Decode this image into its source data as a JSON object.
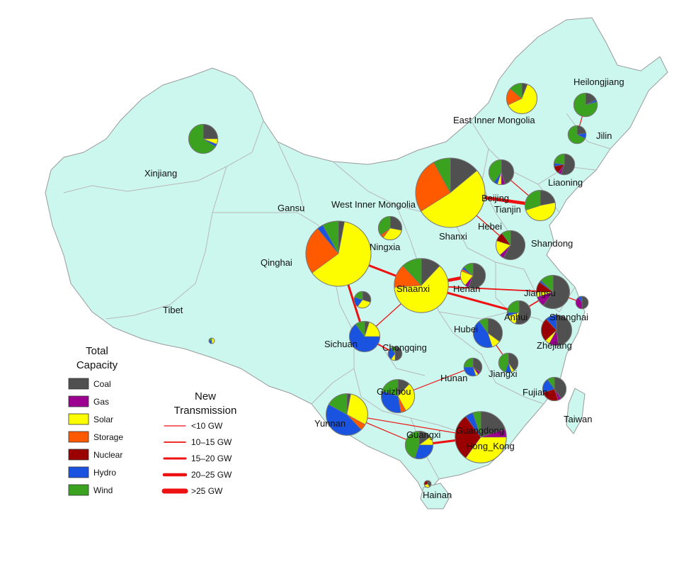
{
  "colors": {
    "Coal": "#505050",
    "Gas": "#9b008f",
    "Solar": "#fdfd00",
    "Storage": "#ff5a00",
    "Nuclear": "#9a0000",
    "Hydro": "#1a53e0",
    "Wind": "#3aa21e",
    "transmission": "#ee1111",
    "land": "#ccf7ee"
  },
  "legend": {
    "capacity_title_1": "Total",
    "capacity_title_2": "Capacity",
    "types": [
      "Coal",
      "Gas",
      "Solar",
      "Storage",
      "Nuclear",
      "Hydro",
      "Wind"
    ],
    "transmission_title_1": "New",
    "transmission_title_2": "Transmission",
    "transmission_levels": [
      "<10 GW",
      "10–15 GW",
      "15–20 GW",
      "20–25 GW",
      ">25 GW"
    ]
  },
  "labels": {
    "xinjiang": "Xinjiang",
    "tibet": "Tibet",
    "qinghai": "Qinghai",
    "gansu": "Gansu",
    "west_inner_mongolia": "West Inner Mongolia",
    "east_inner_mongolia": "East Inner Mongolia",
    "heilongjiang": "Heilongjiang",
    "jilin": "Jilin",
    "liaoning": "Liaoning",
    "beijing": "Beijing",
    "tianjin": "Tianjin",
    "hebei": "Hebei",
    "shanxi": "Shanxi",
    "shandong": "Shandong",
    "ningxia": "Ningxia",
    "shaanxi": "Shaanxi",
    "henan": "Henan",
    "jiangsu": "Jiangsu",
    "shanghai": "Shanghai",
    "anhui": "Anhui",
    "hubei": "Hubei",
    "zhejiang": "Zhejiang",
    "sichuan": "Sichuan",
    "chongqing": "Chongqing",
    "hunan": "Hunan",
    "jiangxi": "Jiangxi",
    "fujian": "Fujian",
    "guizhou": "Guizhou",
    "yunnan": "Yunnan",
    "guangxi": "Guangxi",
    "guangdong": "Guangdong",
    "hong_kong": "Hong_Kong",
    "taiwan": "Taiwan",
    "hainan": "Hainan"
  },
  "pies": [
    {
      "name": "Xinjiang",
      "size": 0.42,
      "shares": {
        "Coal": 0.25,
        "Solar": 0.06,
        "Hydro": 0.03,
        "Wind": 0.66
      }
    },
    {
      "name": "East Inner Mongolia",
      "size": 0.44,
      "shares": {
        "Coal": 0.06,
        "Solar": 0.62,
        "Storage": 0.18,
        "Wind": 0.14
      }
    },
    {
      "name": "Heilongjiang",
      "size": 0.34,
      "shares": {
        "Coal": 0.18,
        "Hydro": 0.03,
        "Wind": 0.79
      }
    },
    {
      "name": "Jilin",
      "size": 0.26,
      "shares": {
        "Coal": 0.22,
        "Hydro": 0.1,
        "Wind": 0.68
      }
    },
    {
      "name": "Liaoning",
      "size": 0.3,
      "shares": {
        "Coal": 0.55,
        "Gas": 0.05,
        "Nuclear": 0.12,
        "Hydro": 0.05,
        "Wind": 0.23
      }
    },
    {
      "name": "West Inner Mongolia",
      "size": 1.0,
      "shares": {
        "Coal": 0.14,
        "Solar": 0.52,
        "Storage": 0.26,
        "Wind": 0.08
      }
    },
    {
      "name": "Beijing",
      "size": 0.36,
      "shares": {
        "Coal": 0.45,
        "Gas": 0.05,
        "Solar": 0.05,
        "Hydro": 0.05,
        "Wind": 0.4
      }
    },
    {
      "name": "Hebei",
      "size": 0.44,
      "shares": {
        "Coal": 0.22,
        "Solar": 0.48,
        "Wind": 0.3
      }
    },
    {
      "name": "Ningxia",
      "size": 0.34,
      "shares": {
        "Coal": 0.28,
        "Solar": 0.32,
        "Storage": 0.05,
        "Wind": 0.35
      }
    },
    {
      "name": "Shandong",
      "size": 0.42,
      "shares": {
        "Coal": 0.58,
        "Gas": 0.05,
        "Solar": 0.17,
        "Nuclear": 0.1,
        "Wind": 0.1
      }
    },
    {
      "name": "Qinghai",
      "size": 0.94,
      "shares": {
        "Coal": 0.03,
        "Solar": 0.62,
        "Storage": 0.24,
        "Hydro": 0.03,
        "Wind": 0.08
      }
    },
    {
      "name": "Gansu",
      "size": 0.24,
      "shares": {
        "Coal": 0.3,
        "Solar": 0.3,
        "Hydro": 0.2,
        "Wind": 0.2
      }
    },
    {
      "name": "Shaanxi",
      "size": 0.78,
      "shares": {
        "Coal": 0.12,
        "Solar": 0.62,
        "Storage": 0.14,
        "Wind": 0.12
      }
    },
    {
      "name": "Henan",
      "size": 0.36,
      "shares": {
        "Coal": 0.56,
        "Gas": 0.05,
        "Solar": 0.2,
        "Storage": 0.03,
        "Hydro": 0.03,
        "Wind": 0.13
      }
    },
    {
      "name": "Jiangsu",
      "size": 0.48,
      "shares": {
        "Coal": 0.6,
        "Gas": 0.1,
        "Solar": 0.05,
        "Nuclear": 0.1,
        "Hydro": 0.02,
        "Wind": 0.13
      }
    },
    {
      "name": "Shanghai",
      "size": 0.18,
      "shares": {
        "Coal": 0.5,
        "Gas": 0.4,
        "Hydro": 0.1
      }
    },
    {
      "name": "Anhui",
      "size": 0.34,
      "shares": {
        "Coal": 0.55,
        "Solar": 0.15,
        "Hydro": 0.05,
        "Wind": 0.25
      }
    },
    {
      "name": "Zhejiang",
      "size": 0.44,
      "shares": {
        "Coal": 0.48,
        "Gas": 0.1,
        "Solar": 0.05,
        "Nuclear": 0.25,
        "Hydro": 0.12
      }
    },
    {
      "name": "Sichuan",
      "size": 0.44,
      "shares": {
        "Coal": 0.05,
        "Solar": 0.2,
        "Hydro": 0.65,
        "Wind": 0.1
      }
    },
    {
      "name": "Chongqing",
      "size": 0.2,
      "shares": {
        "Coal": 0.5,
        "Solar": 0.1,
        "Hydro": 0.3,
        "Wind": 0.1
      }
    },
    {
      "name": "Hubei",
      "size": 0.42,
      "shares": {
        "Coal": 0.35,
        "Solar": 0.1,
        "Hydro": 0.45,
        "Wind": 0.1
      }
    },
    {
      "name": "Hunan",
      "size": 0.26,
      "shares": {
        "Coal": 0.35,
        "Gas": 0.05,
        "Solar": 0.05,
        "Hydro": 0.3,
        "Wind": 0.25
      }
    },
    {
      "name": "Jiangxi",
      "size": 0.28,
      "shares": {
        "Coal": 0.4,
        "Solar": 0.05,
        "Hydro": 0.1,
        "Wind": 0.45
      }
    },
    {
      "name": "Fujian",
      "size": 0.34,
      "shares": {
        "Coal": 0.4,
        "Gas": 0.05,
        "Nuclear": 0.25,
        "Hydro": 0.2,
        "Wind": 0.1
      }
    },
    {
      "name": "Guizhou",
      "size": 0.48,
      "shares": {
        "Coal": 0.12,
        "Solar": 0.3,
        "Storage": 0.05,
        "Hydro": 0.33,
        "Wind": 0.2
      }
    },
    {
      "name": "Yunnan",
      "size": 0.6,
      "shares": {
        "Coal": 0.03,
        "Solar": 0.3,
        "Storage": 0.05,
        "Hydro": 0.45,
        "Wind": 0.17
      }
    },
    {
      "name": "Guangxi",
      "size": 0.4,
      "shares": {
        "Coal": 0.15,
        "Solar": 0.1,
        "Hydro": 0.3,
        "Wind": 0.45
      }
    },
    {
      "name": "Guangdong",
      "size": 0.74,
      "shares": {
        "Coal": 0.2,
        "Gas": 0.05,
        "Solar": 0.35,
        "Nuclear": 0.3,
        "Hydro": 0.05,
        "Wind": 0.05
      }
    },
    {
      "name": "Tibet",
      "size": 0.08,
      "shares": {
        "Solar": 0.5,
        "Hydro": 0.3,
        "Wind": 0.2
      }
    },
    {
      "name": "Hainan",
      "size": 0.1,
      "shares": {
        "Coal": 0.4,
        "Solar": 0.3,
        "Nuclear": 0.3
      }
    }
  ],
  "transmission_lines": [
    {
      "from": "Qinghai",
      "to": "Shaanxi",
      "level": 3
    },
    {
      "from": "Qinghai",
      "to": "Sichuan",
      "level": 3
    },
    {
      "from": "Shaanxi",
      "to": "Henan",
      "level": 4
    },
    {
      "from": "Shaanxi",
      "to": "Anhui",
      "level": 3
    },
    {
      "from": "Shaanxi",
      "to": "Jiangsu",
      "level": 2
    },
    {
      "from": "Shaanxi",
      "to": "Sichuan",
      "level": 1
    },
    {
      "from": "West Inner Mongolia",
      "to": "Hebei",
      "level": 4
    },
    {
      "from": "West Inner Mongolia",
      "to": "Shandong",
      "level": 1
    },
    {
      "from": "Hebei",
      "to": "Beijing",
      "level": 1
    },
    {
      "from": "Heilongjiang",
      "to": "Jilin",
      "level": 1
    },
    {
      "from": "Sichuan",
      "to": "Chongqing",
      "level": 2
    },
    {
      "from": "Hubei",
      "to": "Jiangxi",
      "level": 1
    },
    {
      "from": "Jiangsu",
      "to": "Shanghai",
      "level": 1
    },
    {
      "from": "Anhui",
      "to": "Jiangsu",
      "level": 2
    },
    {
      "from": "Guizhou",
      "to": "Hunan",
      "level": 1
    },
    {
      "from": "Yunnan",
      "to": "Guangdong",
      "level": 1
    },
    {
      "from": "Yunnan",
      "to": "Guangxi",
      "level": 1
    },
    {
      "from": "Guangxi",
      "to": "Guangdong",
      "level": 3
    }
  ]
}
